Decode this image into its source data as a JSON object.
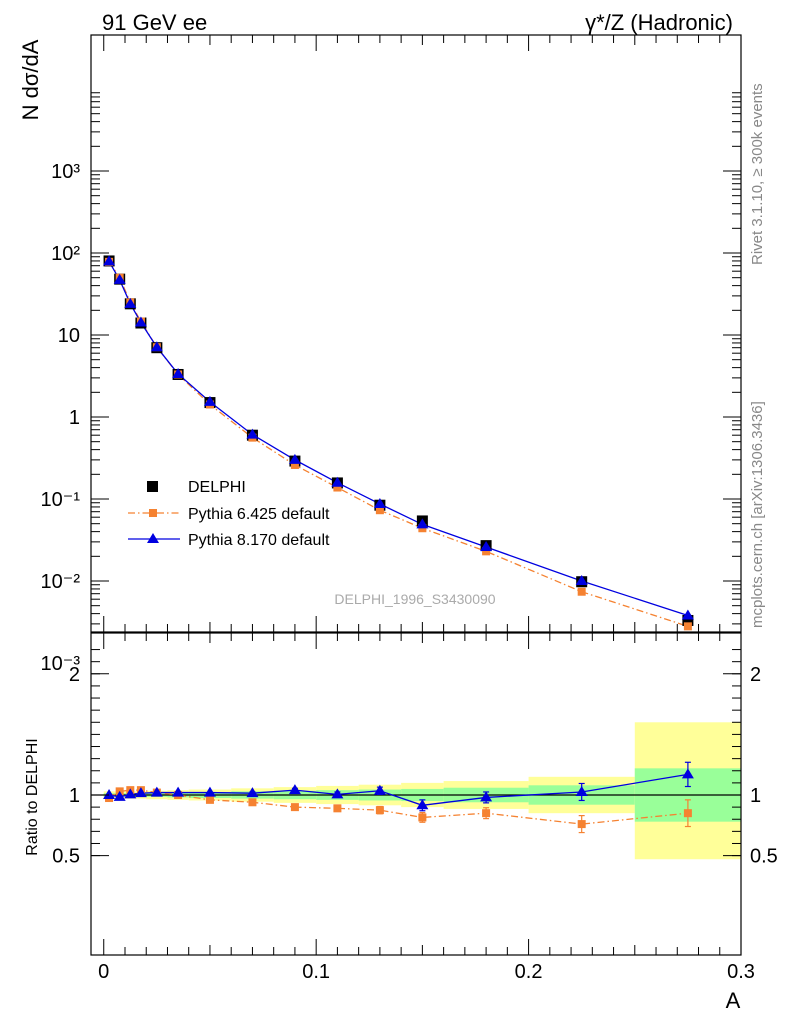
{
  "header": {
    "left_title": "91 GeV ee",
    "right_title": "γ*/Z (Hadronic)"
  },
  "side_labels": {
    "rivet": "Rivet 3.1.10, ≥ 300k events",
    "mcplots": "mcplots.cern.ch [arXiv:1306.3436]"
  },
  "watermark": "DELPHI_1996_S3430090",
  "colors": {
    "data": "#000000",
    "pythia6": "#f58231",
    "pythia8": "#0000e0",
    "band_yellow": "#ffff99",
    "band_green": "#99ff99"
  },
  "chart_data": [
    {
      "type": "line",
      "ylabel": "N dσ/dA",
      "yscale": "log",
      "ylim": [
        0.0003,
        5000
      ],
      "xlim": [
        -0.006,
        0.3
      ],
      "ytick_labels": [
        "10⁻³",
        "10⁻²",
        "10⁻¹",
        "1",
        "10",
        "10²",
        "10³"
      ],
      "x": [
        0.0025,
        0.0075,
        0.0125,
        0.0175,
        0.025,
        0.035,
        0.05,
        0.07,
        0.09,
        0.11,
        0.13,
        0.15,
        0.18,
        0.225,
        0.275
      ],
      "series": [
        {
          "name": "DELPHI",
          "marker": "square",
          "values": [
            80,
            48,
            24,
            14,
            7.0,
            3.3,
            1.5,
            0.6,
            0.29,
            0.157,
            0.084,
            0.054,
            0.027,
            0.0098,
            0.0033
          ]
        },
        {
          "name": "Pythia 6.425 default",
          "marker": "square-small",
          "style": "dash-dot",
          "values": [
            78,
            50,
            25,
            14.6,
            7.1,
            3.3,
            1.42,
            0.56,
            0.26,
            0.138,
            0.073,
            0.044,
            0.023,
            0.0074,
            0.0028
          ]
        },
        {
          "name": "Pythia 8.170 default",
          "marker": "triangle",
          "style": "solid",
          "values": [
            79,
            47,
            24,
            14.2,
            7.1,
            3.35,
            1.53,
            0.61,
            0.3,
            0.158,
            0.087,
            0.049,
            0.026,
            0.01,
            0.0038
          ]
        }
      ],
      "legend": [
        "DELPHI",
        "Pythia 6.425 default",
        "Pythia 8.170 default"
      ],
      "legend_position": "bottom-left"
    },
    {
      "type": "line",
      "ylabel": "Ratio to DELPHI",
      "xlabel": "A",
      "ylim": [
        0.4,
        2.35
      ],
      "xlim": [
        -0.006,
        0.3
      ],
      "ytick_labels": [
        "0.5",
        "1",
        "2"
      ],
      "xtick_labels": [
        "0",
        "0.1",
        "0.2",
        "0.3"
      ],
      "bins": [
        [
          0,
          0.005
        ],
        [
          0.005,
          0.01
        ],
        [
          0.01,
          0.015
        ],
        [
          0.015,
          0.02
        ],
        [
          0.02,
          0.03
        ],
        [
          0.03,
          0.04
        ],
        [
          0.04,
          0.06
        ],
        [
          0.06,
          0.08
        ],
        [
          0.08,
          0.1
        ],
        [
          0.1,
          0.12
        ],
        [
          0.12,
          0.14
        ],
        [
          0.14,
          0.16
        ],
        [
          0.16,
          0.2
        ],
        [
          0.2,
          0.25
        ],
        [
          0.25,
          0.3
        ]
      ],
      "band_green": [
        [
          0.985,
          1.015
        ],
        [
          0.985,
          1.015
        ],
        [
          0.985,
          1.015
        ],
        [
          0.985,
          1.015
        ],
        [
          0.985,
          1.02
        ],
        [
          0.98,
          1.02
        ],
        [
          0.975,
          1.025
        ],
        [
          0.97,
          1.03
        ],
        [
          0.965,
          1.035
        ],
        [
          0.96,
          1.04
        ],
        [
          0.955,
          1.045
        ],
        [
          0.95,
          1.05
        ],
        [
          0.94,
          1.06
        ],
        [
          0.92,
          1.08
        ],
        [
          0.78,
          1.22
        ]
      ],
      "band_yellow": [
        [
          0.97,
          1.03
        ],
        [
          0.97,
          1.03
        ],
        [
          0.97,
          1.03
        ],
        [
          0.97,
          1.03
        ],
        [
          0.965,
          1.035
        ],
        [
          0.96,
          1.04
        ],
        [
          0.955,
          1.045
        ],
        [
          0.945,
          1.055
        ],
        [
          0.935,
          1.065
        ],
        [
          0.925,
          1.075
        ],
        [
          0.915,
          1.085
        ],
        [
          0.9,
          1.1
        ],
        [
          0.885,
          1.115
        ],
        [
          0.85,
          1.15
        ],
        [
          0.47,
          1.6
        ]
      ],
      "series": [
        {
          "name": "Pythia 6.425 default",
          "values": [
            0.975,
            1.03,
            1.04,
            1.04,
            1.02,
            1.0,
            0.96,
            0.94,
            0.9,
            0.89,
            0.875,
            0.815,
            0.85,
            0.76,
            0.85
          ],
          "errors": [
            0.005,
            0.005,
            0.005,
            0.005,
            0.005,
            0.006,
            0.007,
            0.01,
            0.015,
            0.02,
            0.03,
            0.04,
            0.045,
            0.07,
            0.11
          ]
        },
        {
          "name": "Pythia 8.170 default",
          "values": [
            1.0,
            0.985,
            1.005,
            1.015,
            1.02,
            1.02,
            1.02,
            1.015,
            1.04,
            1.005,
            1.035,
            0.915,
            0.98,
            1.025,
            1.17
          ],
          "errors": [
            0.005,
            0.005,
            0.005,
            0.005,
            0.005,
            0.006,
            0.007,
            0.01,
            0.015,
            0.02,
            0.03,
            0.045,
            0.045,
            0.07,
            0.1
          ]
        }
      ]
    }
  ]
}
